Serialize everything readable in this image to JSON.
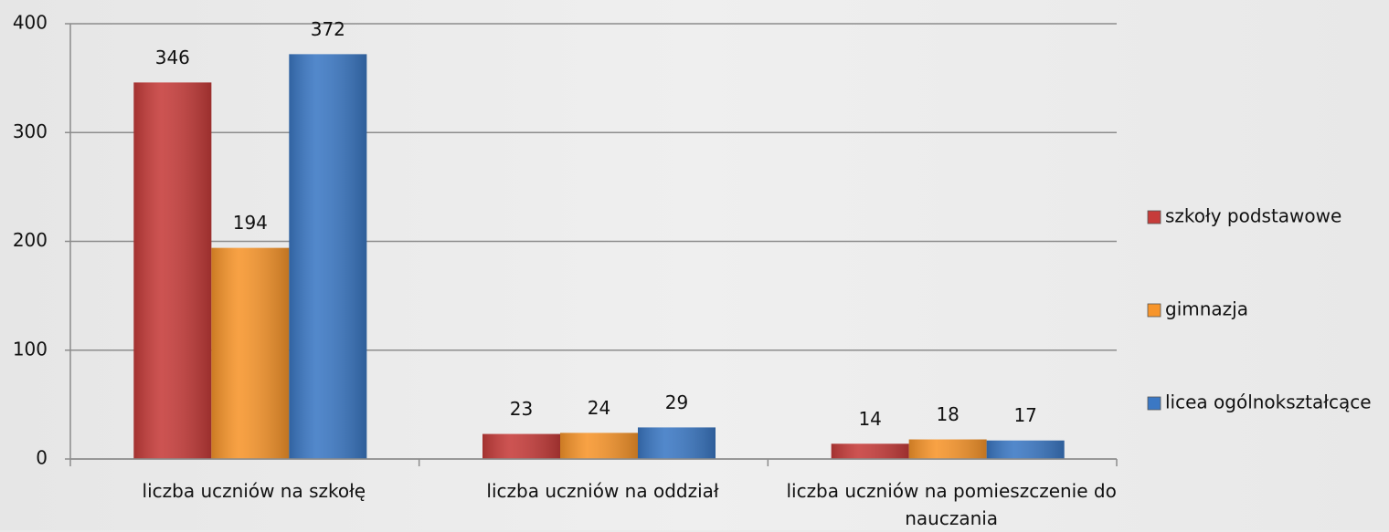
{
  "chart_data": {
    "type": "bar",
    "categories": [
      "liczba uczniów na szkołę",
      "liczba uczniów na oddział",
      "liczba uczniów na pomieszczenie do nauczania"
    ],
    "series": [
      {
        "name": "szkoły podstawowe",
        "color": "#c63c3a",
        "values": [
          346,
          23,
          14
        ]
      },
      {
        "name": "gimnazja",
        "color": "#f7952b",
        "values": [
          194,
          24,
          18
        ]
      },
      {
        "name": "licea ogólnokształcące",
        "color": "#3b78c4",
        "values": [
          372,
          29,
          17
        ]
      }
    ],
    "ylim": [
      0,
      400
    ],
    "yticks": [
      0,
      100,
      200,
      300,
      400
    ],
    "grid": true,
    "legend": "right"
  }
}
